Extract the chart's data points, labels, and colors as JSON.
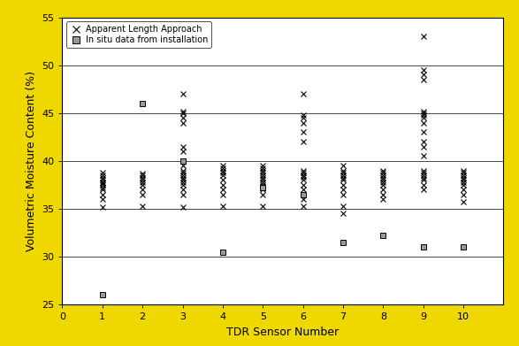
{
  "title": "",
  "xlabel": "TDR Sensor Number",
  "ylabel": "Volumetric Moisture Content (%)",
  "xlim": [
    0,
    11
  ],
  "ylim": [
    25,
    55
  ],
  "yticks": [
    25,
    30,
    35,
    40,
    45,
    50,
    55
  ],
  "xticks": [
    0,
    1,
    2,
    3,
    4,
    5,
    6,
    7,
    8,
    9,
    10
  ],
  "background_color": "#ffffff",
  "border_color": "#eed800",
  "apparent_length": {
    "1": [
      35.2,
      36.0,
      36.5,
      37.0,
      37.2,
      37.5,
      37.7,
      37.8,
      38.0,
      38.2,
      38.5,
      38.8
    ],
    "2": [
      35.3,
      36.5,
      37.0,
      37.5,
      37.8,
      38.0,
      38.2,
      38.5,
      38.7
    ],
    "3": [
      35.2,
      36.5,
      37.0,
      37.5,
      37.8,
      38.0,
      38.2,
      38.5,
      38.8,
      39.0,
      39.5,
      41.0,
      41.5,
      44.0,
      44.5,
      45.0,
      45.2,
      47.0
    ],
    "4": [
      35.3,
      36.5,
      37.0,
      37.5,
      38.0,
      38.5,
      38.8,
      39.0,
      39.2,
      39.5
    ],
    "5": [
      35.3,
      36.5,
      37.0,
      37.3,
      37.5,
      37.8,
      38.0,
      38.2,
      38.5,
      38.8,
      39.0,
      39.2,
      39.5
    ],
    "6": [
      35.3,
      36.0,
      36.5,
      37.0,
      37.5,
      38.0,
      38.3,
      38.5,
      38.8,
      39.0,
      42.0,
      43.0,
      44.0,
      44.5,
      44.8,
      47.0
    ],
    "7": [
      35.3,
      36.5,
      37.0,
      37.5,
      38.0,
      38.2,
      38.5,
      38.8,
      39.0,
      39.5,
      34.5
    ],
    "8": [
      36.0,
      36.5,
      37.0,
      37.5,
      37.8,
      38.0,
      38.2,
      38.5,
      38.8,
      39.0
    ],
    "9": [
      37.0,
      37.5,
      38.0,
      38.2,
      38.5,
      38.8,
      39.0,
      40.5,
      41.5,
      42.0,
      43.0,
      44.0,
      44.5,
      44.8,
      45.0,
      45.2,
      48.5,
      49.0,
      49.5,
      53.0
    ],
    "10": [
      35.7,
      36.5,
      37.0,
      37.5,
      37.8,
      38.0,
      38.2,
      38.5,
      38.8,
      39.0
    ]
  },
  "in_situ": {
    "1": [
      26.0
    ],
    "2": [
      46.0
    ],
    "3": [
      40.0
    ],
    "4": [
      30.5
    ],
    "5": [
      37.2
    ],
    "6": [
      36.5
    ],
    "7": [
      31.5
    ],
    "8": [
      32.2
    ],
    "9": [
      31.0
    ],
    "10": [
      31.0
    ]
  },
  "legend_fontsize": 7,
  "tick_fontsize": 8,
  "axis_label_fontsize": 9,
  "marker_x_size": 4,
  "marker_sq_size": 5
}
